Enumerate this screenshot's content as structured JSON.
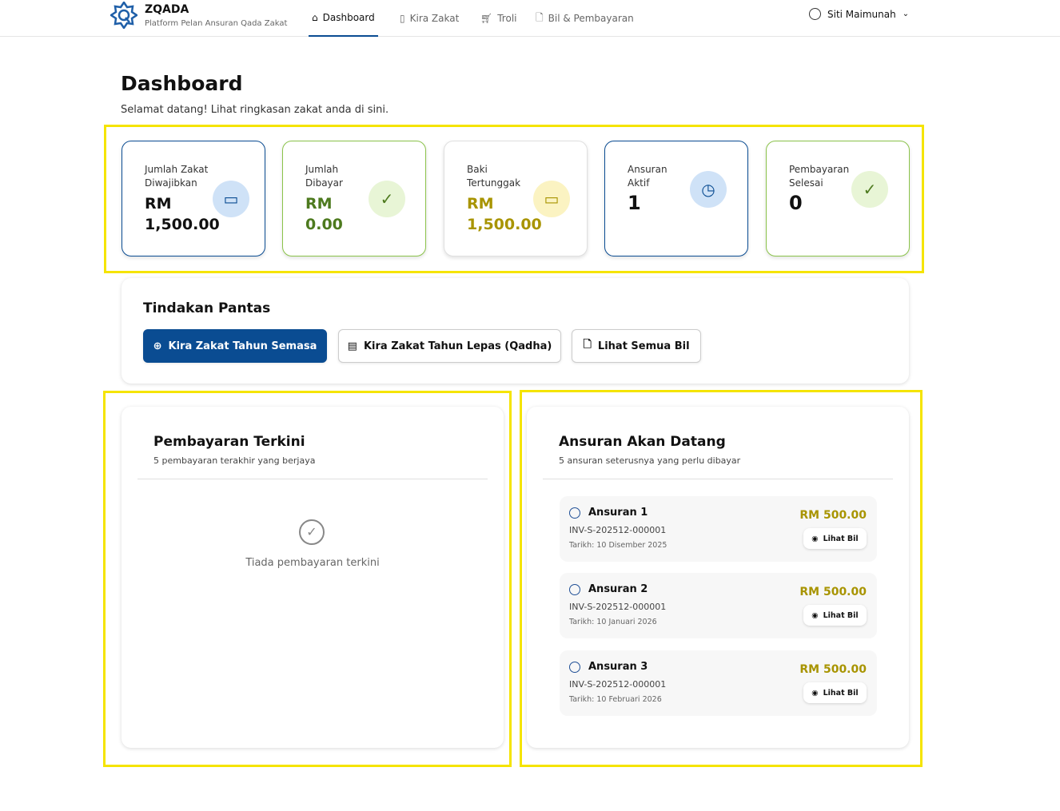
{
  "nav": {
    "brand": "ZQADA",
    "tagline": "Platform Pelan Ansuran Qada Zakat",
    "items": [
      {
        "label": "Dashboard",
        "icon": "home-icon"
      },
      {
        "label": "Kira Zakat",
        "icon": "calculator-icon"
      },
      {
        "label": "Troli",
        "icon": "cart-icon"
      },
      {
        "label": "Bil & Pembayaran",
        "icon": "document-icon"
      }
    ],
    "user": "Siti Maimunah"
  },
  "page": {
    "title": "Dashboard",
    "subtitle": "Selamat datang! Lihat ringkasan zakat anda di sini."
  },
  "stats": [
    {
      "label": "Jumlah Zakat Diwajibkan",
      "value": "RM 1,500.00",
      "icon": "money-icon",
      "color": "#111111",
      "border": "#0a4c92"
    },
    {
      "label": "Jumlah Dibayar",
      "value": "RM 0.00",
      "icon": "check-circle-icon",
      "color": "#4d7a1e",
      "border": "#8bc34a"
    },
    {
      "label": "Baki Tertunggak",
      "value": "RM 1,500.00",
      "icon": "money-icon",
      "color": "#a89400",
      "border": "#e0e0e0"
    },
    {
      "label": "Ansuran Aktif",
      "value": "1",
      "icon": "clock-icon",
      "color": "#111111",
      "border": "#0a4c92"
    },
    {
      "label": "Pembayaran Selesai",
      "value": "0",
      "icon": "check-circle-icon",
      "color": "#111111",
      "border": "#8bc34a"
    }
  ],
  "quick": {
    "title": "Tindakan Pantas",
    "buttons": [
      "Kira Zakat Tahun Semasa",
      "Kira Zakat Tahun Lepas (Qadha)",
      "Lihat Semua Bil"
    ]
  },
  "recent": {
    "title": "Pembayaran Terkini",
    "subtitle": "5 pembayaran terakhir yang berjaya",
    "empty": "Tiada pembayaran terkini"
  },
  "upcoming": {
    "title": "Ansuran Akan Datang",
    "subtitle": "5 ansuran seterusnya yang perlu dibayar",
    "view_label": "Lihat Bil",
    "items": [
      {
        "name": "Ansuran 1",
        "invoice": "INV-S-202512-000001",
        "date": "Tarikh: 10 Disember 2025",
        "amount": "RM 500.00"
      },
      {
        "name": "Ansuran 2",
        "invoice": "INV-S-202512-000001",
        "date": "Tarikh: 10 Januari 2026",
        "amount": "RM 500.00"
      },
      {
        "name": "Ansuran 3",
        "invoice": "INV-S-202512-000001",
        "date": "Tarikh: 10 Februari 2026",
        "amount": "RM 500.00"
      }
    ]
  },
  "colors": {
    "primary": "#0a4c92",
    "green": "#8bc34a",
    "gold": "#a89400",
    "highlight": "#f5e400"
  }
}
